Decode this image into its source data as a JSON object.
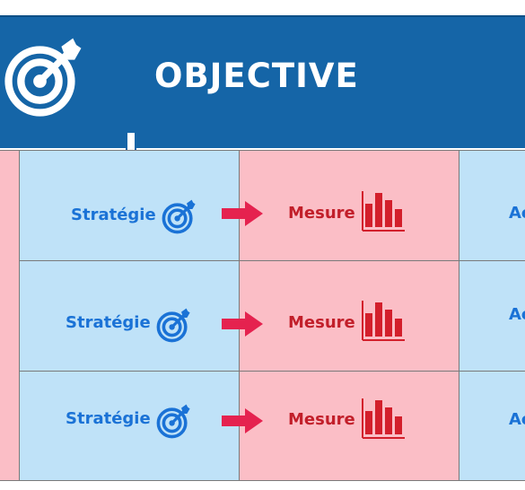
{
  "header": {
    "title": "OBJECTIVE"
  },
  "rows": [
    {
      "strategy": "Stratégie",
      "measure": "Mesure",
      "action": "Ac"
    },
    {
      "strategy": "Stratégie",
      "measure": "Mesure",
      "action": "Ac"
    },
    {
      "strategy": "Stratégie",
      "measure": "Mesure",
      "action": "Ac"
    }
  ],
  "colors": {
    "header_blue": "#1565a7",
    "cell_blue": "#bfe2f8",
    "cell_pink": "#fbbec6",
    "strategy_text": "#1a72d6",
    "measure_text": "#c21f2a",
    "arrow": "#e5224f"
  },
  "icons": [
    "target-arrow-icon",
    "down-arrow-icon",
    "right-arrow-icon",
    "bar-chart-icon"
  ]
}
